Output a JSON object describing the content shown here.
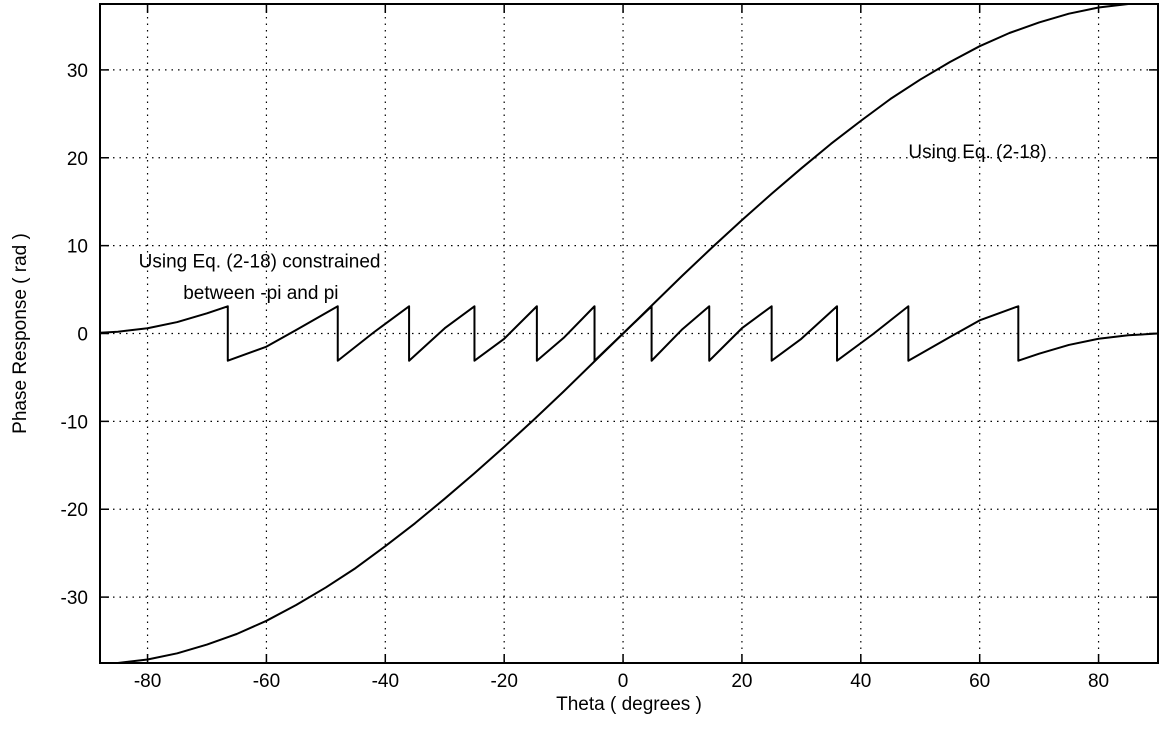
{
  "chart_data": {
    "type": "line",
    "xlabel": "Theta ( degrees )",
    "ylabel": "Phase Response ( rad )",
    "xlim": [
      -88,
      90
    ],
    "ylim": [
      -37.5,
      37.5
    ],
    "xticks": [
      -80,
      -60,
      -40,
      -20,
      0,
      20,
      40,
      60,
      80
    ],
    "yticks": [
      -30,
      -20,
      -10,
      0,
      10,
      20,
      30
    ],
    "grid": true,
    "series": [
      {
        "x": [
          -90,
          -85,
          -80,
          -75,
          -70,
          -65,
          -60,
          -55,
          -50,
          -45,
          -40,
          -35,
          -30,
          -25,
          -20,
          -15,
          -10,
          -5,
          0,
          5,
          10,
          15,
          20,
          25,
          30,
          35,
          40,
          45,
          50,
          55,
          60,
          65,
          70,
          75,
          80,
          85,
          90
        ],
        "y": [
          -37.7,
          -37.5,
          -37.1,
          -36.4,
          -35.4,
          -34.2,
          -32.7,
          -30.9,
          -28.9,
          -26.7,
          -24.2,
          -21.6,
          -18.8,
          -15.9,
          -12.9,
          -9.8,
          -6.6,
          -3.3,
          0,
          3.3,
          6.6,
          9.8,
          12.9,
          15.9,
          18.8,
          21.6,
          24.2,
          26.7,
          28.9,
          30.9,
          32.7,
          34.2,
          35.4,
          36.4,
          37.1,
          37.5,
          37.7
        ]
      },
      {
        "x": [
          -90,
          -85,
          -80,
          -75,
          -70,
          -66.5,
          -66.5,
          -60,
          -55,
          -48,
          -48,
          -42,
          -36,
          -36,
          -30,
          -25,
          -25,
          -20,
          -14.5,
          -14.5,
          -10,
          -4.8,
          -4.8,
          0,
          4.8,
          4.8,
          10,
          14.5,
          14.5,
          20,
          25,
          25,
          30,
          36,
          36,
          42,
          48,
          48,
          55,
          60,
          66.5,
          66.5,
          70,
          75,
          80,
          85,
          90
        ],
        "y": [
          0,
          0.2,
          0.6,
          1.3,
          2.3,
          3.1,
          -3.1,
          -1.5,
          0.4,
          3.1,
          -3.1,
          0.1,
          3.1,
          -3.1,
          0.6,
          3.1,
          -3.1,
          -0.6,
          3.1,
          -3.1,
          -0.5,
          3.1,
          -3.1,
          0,
          3.1,
          -3.1,
          0.5,
          3.1,
          -3.1,
          0.6,
          3.1,
          -3.1,
          -0.6,
          3.1,
          -3.1,
          -0.1,
          3.1,
          -3.1,
          -0.4,
          1.5,
          3.1,
          -3.1,
          -2.3,
          -1.3,
          -0.6,
          -0.2,
          0
        ]
      }
    ],
    "annotations": [
      {
        "text": "Using Eq. (2-18)",
        "x": 48,
        "y": 20
      },
      {
        "text": "Using Eq. (2-18) constrained",
        "x": -81.5,
        "y": 7.5
      },
      {
        "text": "between  -pi  and  pi",
        "x": -74,
        "y": 3.9
      }
    ]
  }
}
